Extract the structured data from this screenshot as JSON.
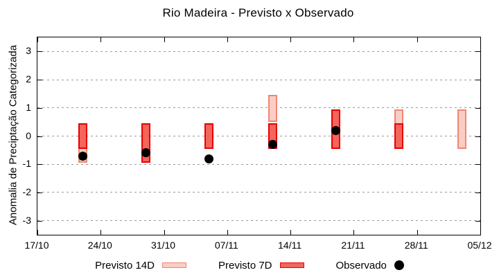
{
  "chart_data": {
    "type": "rangebar",
    "title": "Rio Madeira - Previsto x Observado",
    "ylabel": "Anomalia de Preciptação Categorizada",
    "ylim": [
      -3.5,
      3.5
    ],
    "x_span_days": 49,
    "grid": "horizontal-dashed",
    "legend_position": "bottom",
    "background": "#ffffff",
    "gridline_color": "#9a9a9a",
    "yticks": [
      {
        "value": 3,
        "label": "3"
      },
      {
        "value": 2,
        "label": "2"
      },
      {
        "value": 1,
        "label": "1"
      },
      {
        "value": 0,
        "label": "0"
      },
      {
        "value": -1,
        "label": "-1"
      },
      {
        "value": -2,
        "label": "-2"
      },
      {
        "value": -3,
        "label": "-3"
      }
    ],
    "xticks": [
      {
        "day": 0,
        "label": "17/10"
      },
      {
        "day": 7,
        "label": "24/10"
      },
      {
        "day": 14,
        "label": "31/10"
      },
      {
        "day": 21,
        "label": "07/11"
      },
      {
        "day": 28,
        "label": "14/11"
      },
      {
        "day": 35,
        "label": "21/11"
      },
      {
        "day": 42,
        "label": "28/11"
      },
      {
        "day": 49,
        "label": "05/12"
      }
    ],
    "series": {
      "p14": {
        "name": "Previsto 14D",
        "fill": "#f9cdc5",
        "border": "#ef8673"
      },
      "p7": {
        "name": "Previsto 7D",
        "fill": "#f4655b",
        "border": "#e60000"
      },
      "obs": {
        "name": "Observado",
        "color": "#000000"
      }
    },
    "points": [
      {
        "date": "22/10",
        "day": 5,
        "previsto_14d": [
          -0.95,
          0.45
        ],
        "previsto_7d": [
          -0.45,
          0.45
        ],
        "observado": -0.7
      },
      {
        "date": "29/10",
        "day": 12,
        "previsto_14d": null,
        "previsto_7d": [
          -0.95,
          0.45
        ],
        "observado": -0.6
      },
      {
        "date": "05/11",
        "day": 19,
        "previsto_14d": null,
        "previsto_7d": [
          -0.45,
          0.45
        ],
        "observado": -0.8
      },
      {
        "date": "12/11",
        "day": 26,
        "previsto_14d": [
          0.5,
          1.45
        ],
        "previsto_7d": [
          -0.45,
          0.45
        ],
        "observado": -0.3
      },
      {
        "date": "19/11",
        "day": 33,
        "previsto_14d": null,
        "previsto_7d": [
          -0.45,
          0.95
        ],
        "observado": 0.2
      },
      {
        "date": "26/11",
        "day": 40,
        "previsto_14d": [
          -0.45,
          0.95
        ],
        "previsto_7d": [
          -0.45,
          0.45
        ],
        "observado": null
      },
      {
        "date": "03/12",
        "day": 47,
        "previsto_14d": [
          -0.45,
          0.95
        ],
        "previsto_7d": null,
        "observado": null
      }
    ]
  }
}
